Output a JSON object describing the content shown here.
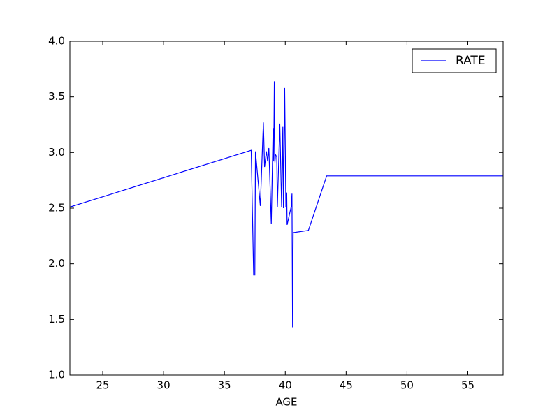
{
  "chart_data": {
    "type": "line",
    "x_label": "AGE",
    "x": [
      22.3,
      37.2,
      37.4,
      37.5,
      37.55,
      37.95,
      38.2,
      38.3,
      38.45,
      38.55,
      38.65,
      38.85,
      39.0,
      39.05,
      39.1,
      39.15,
      39.2,
      39.3,
      39.35,
      39.55,
      39.7,
      39.8,
      39.85,
      39.95,
      40.05,
      40.12,
      40.15,
      40.5,
      40.55,
      40.6,
      40.65,
      41.9,
      43.4,
      57.9
    ],
    "series": [
      {
        "name": "RATE",
        "color": "#0000ff",
        "values": [
          2.51,
          3.02,
          1.9,
          1.9,
          3.01,
          2.52,
          3.27,
          2.87,
          3.01,
          2.92,
          3.04,
          2.36,
          3.22,
          2.92,
          3.64,
          2.91,
          2.98,
          2.96,
          2.51,
          3.26,
          2.51,
          3.23,
          2.5,
          3.58,
          2.51,
          2.64,
          2.35,
          2.52,
          2.63,
          1.43,
          2.28,
          2.3,
          2.79,
          2.79
        ]
      }
    ],
    "xlim": [
      22.3,
      57.9
    ],
    "xticks": [
      25,
      30,
      35,
      40,
      45,
      50,
      55
    ],
    "ylim": [
      1,
      4
    ],
    "yticks": [
      {
        "value": 1,
        "label": "1.0"
      },
      1.5,
      {
        "value": 2,
        "label": "2.0"
      },
      2.5,
      {
        "value": 3,
        "label": "3.0"
      },
      3.5,
      {
        "value": 4,
        "label": "4.0"
      }
    ],
    "grid": false,
    "legend": "upper right"
  }
}
